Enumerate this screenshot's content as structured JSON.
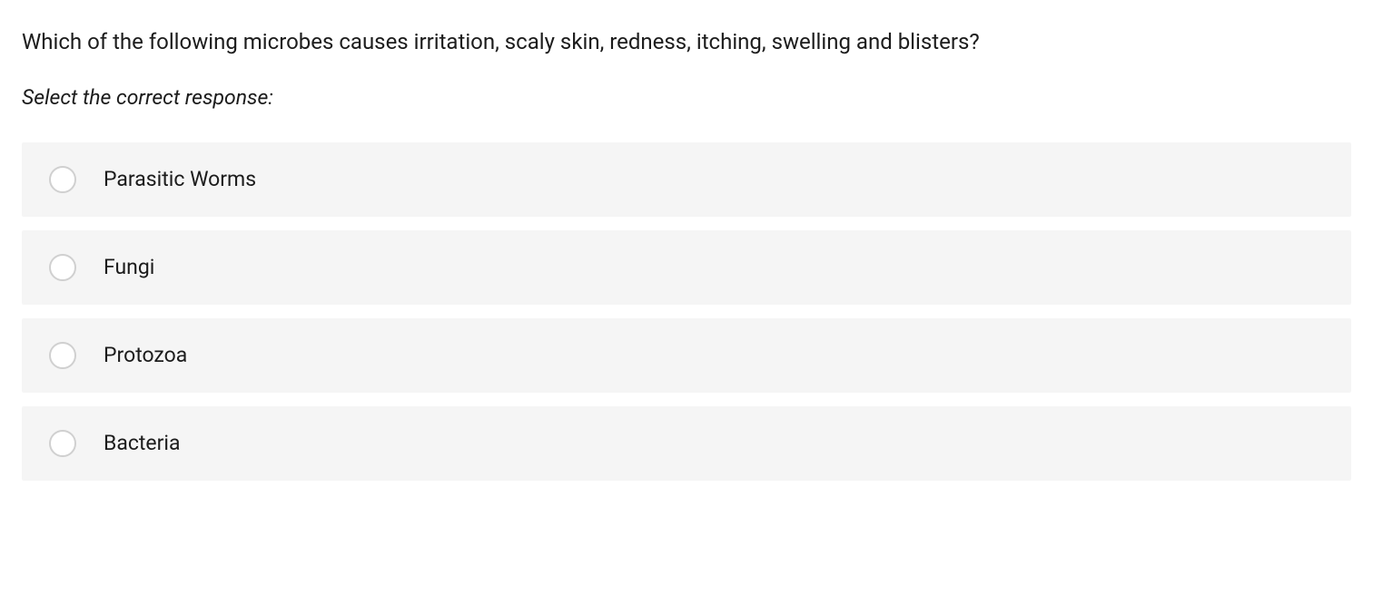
{
  "question": {
    "text": "Which of the following microbes causes irritation, scaly skin, redness, itching, swelling and blisters?",
    "instruction": "Select the correct response:",
    "options": [
      {
        "label": "Parasitic Worms"
      },
      {
        "label": "Fungi"
      },
      {
        "label": "Protozoa"
      },
      {
        "label": "Bacteria"
      }
    ]
  },
  "styling": {
    "question_fontsize": 24,
    "instruction_fontsize": 23,
    "option_fontsize": 23,
    "text_color": "#1c1c1c",
    "option_background": "#f5f5f5",
    "radio_border_color": "#d0d0d0",
    "radio_background": "#ffffff",
    "body_background": "#ffffff"
  }
}
